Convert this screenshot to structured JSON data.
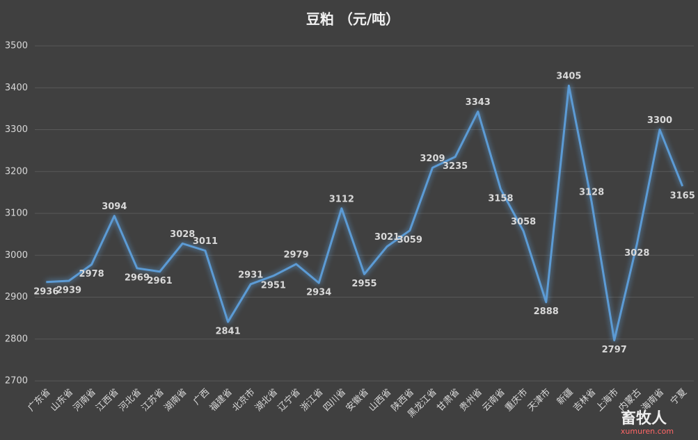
{
  "chart_data": {
    "type": "line",
    "title": "豆粕 （元/吨）",
    "categories": [
      "广东省",
      "山东省",
      "河南省",
      "江西省",
      "河北省",
      "江苏省",
      "湖南省",
      "广西",
      "福建省",
      "北京市",
      "湖北省",
      "辽宁省",
      "浙江省",
      "四川省",
      "安徽省",
      "山西省",
      "陕西省",
      "黑龙江省",
      "甘肃省",
      "贵州省",
      "云南省",
      "重庆市",
      "天津市",
      "新疆",
      "吉林省",
      "上海市",
      "内蒙古",
      "海南省",
      "宁夏"
    ],
    "values": [
      2936,
      2939,
      2978,
      3094,
      2969,
      2961,
      3028,
      3011,
      2841,
      2931,
      2951,
      2979,
      2934,
      3112,
      2955,
      3021,
      3059,
      3209,
      3235,
      3343,
      3158,
      3058,
      2888,
      3405,
      3128,
      2797,
      3028,
      3300,
      3165
    ],
    "color": "#5b9bd5",
    "ylim": [
      2700,
      3500
    ],
    "yticks": [
      2700,
      2800,
      2900,
      3000,
      3100,
      3200,
      3300,
      3400,
      3500
    ],
    "grid": true,
    "watermark": "畜牧人",
    "watermark_url": "xumuren.com"
  }
}
